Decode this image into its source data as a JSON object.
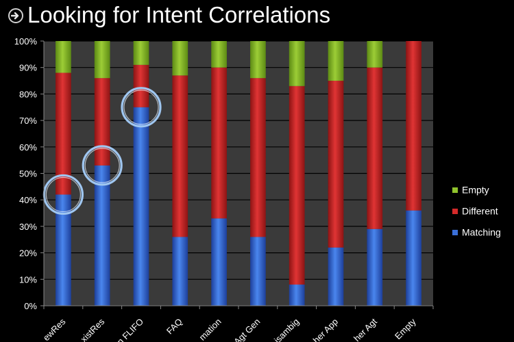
{
  "slide": {
    "title": "Looking for Intent Correlations"
  },
  "chart_data": {
    "type": "bar",
    "stacked": true,
    "percent_stacked": true,
    "title": "",
    "xlabel": "",
    "ylabel": "",
    "ylim": [
      0,
      100
    ],
    "y_ticks": [
      "0%",
      "10%",
      "20%",
      "30%",
      "40%",
      "50%",
      "60%",
      "70%",
      "80%",
      "90%",
      "100%"
    ],
    "categories": [
      "ewRes",
      "xistRes",
      "n FLIFO",
      "FAQ",
      "mation",
      "Agt Gen",
      "isambig",
      "her App",
      "her Agt",
      "Empty"
    ],
    "series": [
      {
        "name": "Matching",
        "color": "#3a6fd8",
        "values": [
          42,
          53,
          75,
          26,
          33,
          26,
          8,
          22,
          29,
          36
        ]
      },
      {
        "name": "Different",
        "color": "#d42a2a",
        "values": [
          46,
          33,
          16,
          61,
          57,
          60,
          75,
          63,
          61,
          64
        ]
      },
      {
        "name": "Empty",
        "color": "#8fc22c",
        "values": [
          12,
          14,
          9,
          13,
          10,
          14,
          17,
          15,
          10,
          0
        ]
      }
    ],
    "legend": {
      "position": "right",
      "order": [
        "Empty",
        "Different",
        "Matching"
      ]
    },
    "highlighted_categories": [
      "ewRes",
      "xistRes",
      "n FLIFO"
    ],
    "plot_background": "#3a3a3a",
    "grid": true
  }
}
